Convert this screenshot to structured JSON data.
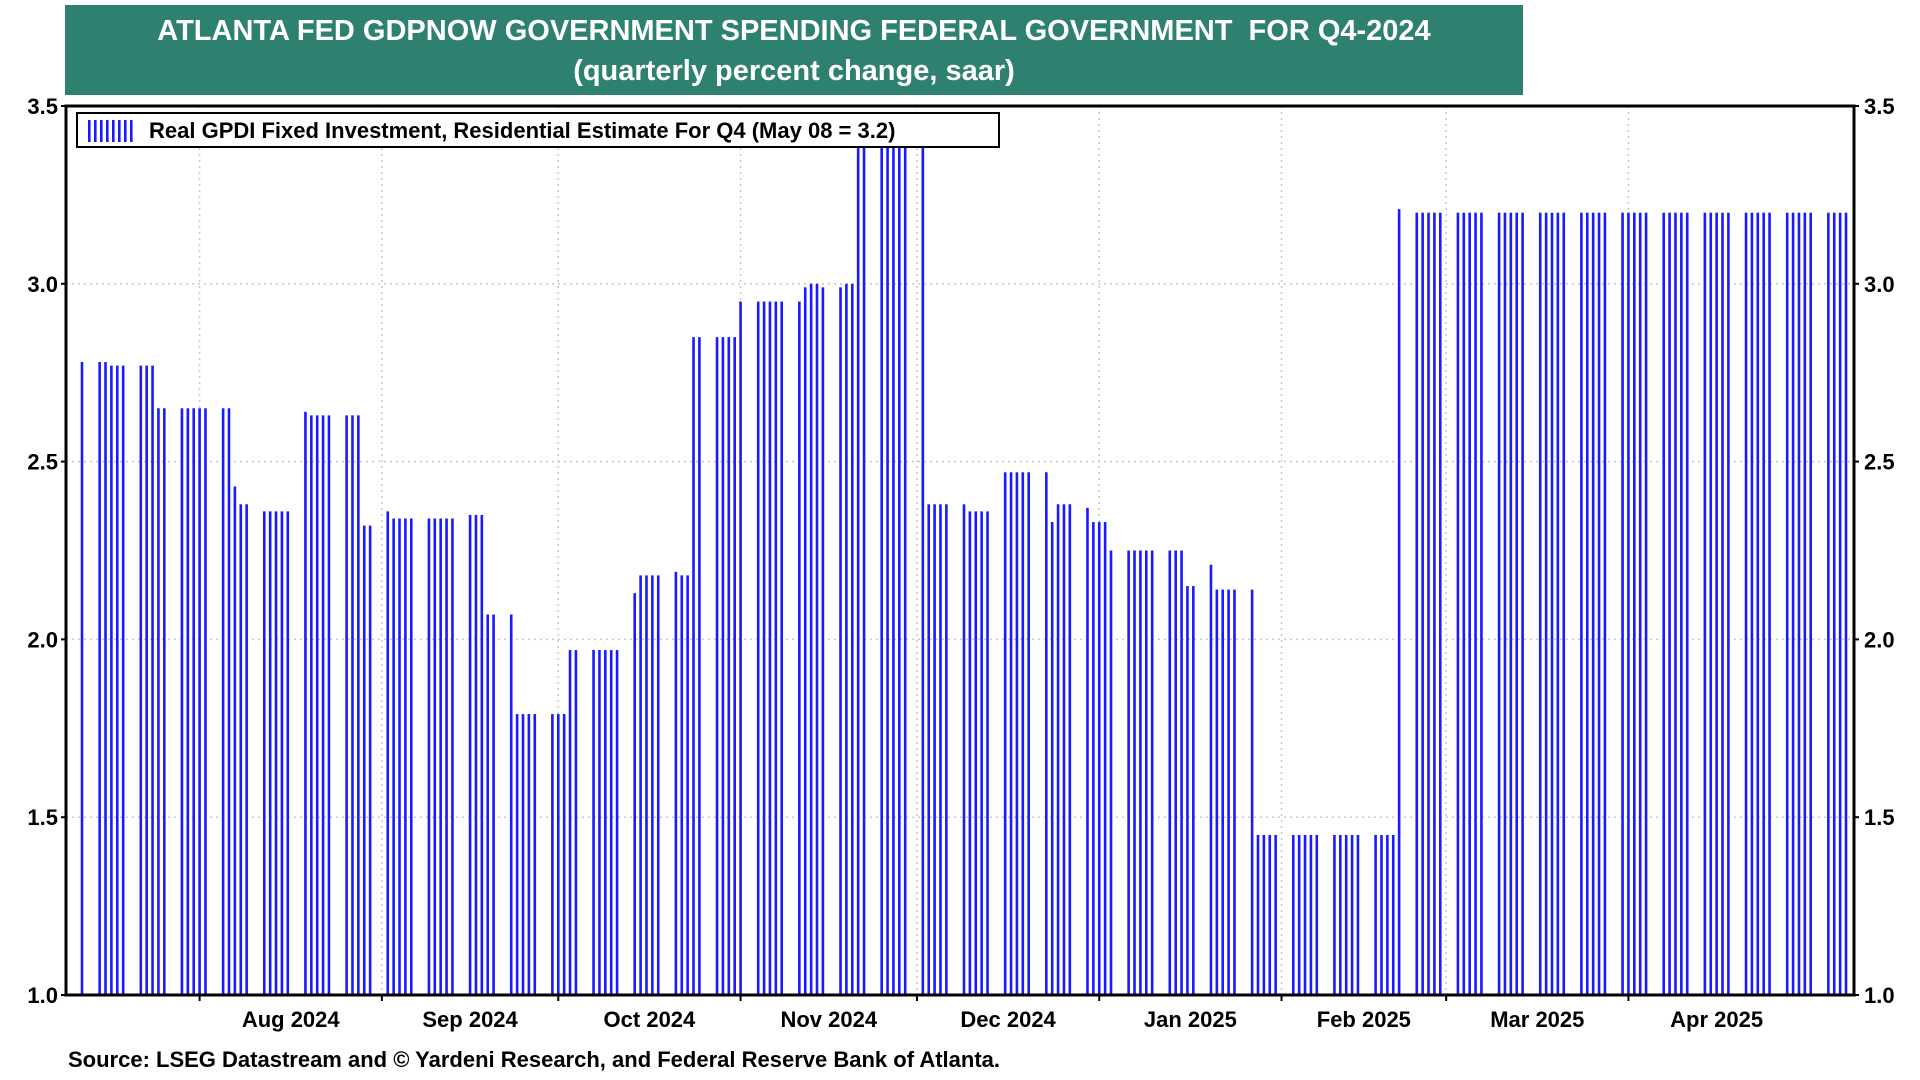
{
  "title": {
    "line1": "ATLANTA FED GDPNOW GOVERNMENT SPENDING FEDERAL GOVERNMENT  FOR Q4-2024",
    "line2": "(quarterly percent change, saar)"
  },
  "source": "Source: LSEG Datastream and © Yardeni Research, and Federal Reserve Bank of Atlanta.",
  "colors": {
    "title_bg": "#2e8070",
    "bar": "#1a1aff",
    "grid": "#c8c8c8"
  },
  "chart_data": {
    "type": "bar",
    "ylim": [
      1.0,
      3.5
    ],
    "yticks": [
      "1.0",
      "1.5",
      "2.0",
      "2.5",
      "3.0",
      "3.5"
    ],
    "grid": true,
    "legend_position": "top-left",
    "x_start": "2024-07-12",
    "x_end": "2025-05-08",
    "month_labels": [
      {
        "date": "2024-08-01",
        "label": "Aug 2024"
      },
      {
        "date": "2024-09-01",
        "label": "Sep 2024"
      },
      {
        "date": "2024-10-01",
        "label": "Oct 2024"
      },
      {
        "date": "2024-11-01",
        "label": "Nov 2024"
      },
      {
        "date": "2024-12-01",
        "label": "Dec 2024"
      },
      {
        "date": "2025-01-01",
        "label": "Jan 2025"
      },
      {
        "date": "2025-02-01",
        "label": "Feb 2025"
      },
      {
        "date": "2025-03-01",
        "label": "Mar 2025"
      },
      {
        "date": "2025-04-01",
        "label": "Apr 2025"
      }
    ],
    "series": [
      {
        "name": "Real GPDI Fixed Investment, Residential Estimate For Q4 (May 08 = 3.2)",
        "segments": [
          {
            "start": "2024-07-12",
            "end": "2024-07-16",
            "value": 2.78
          },
          {
            "start": "2024-07-17",
            "end": "2024-07-24",
            "value": 2.77
          },
          {
            "start": "2024-07-25",
            "end": "2024-08-06",
            "value": 2.65
          },
          {
            "start": "2024-08-07",
            "end": "2024-08-07",
            "value": 2.43
          },
          {
            "start": "2024-08-08",
            "end": "2024-08-11",
            "value": 2.38
          },
          {
            "start": "2024-08-12",
            "end": "2024-08-16",
            "value": 2.36
          },
          {
            "start": "2024-08-17",
            "end": "2024-08-19",
            "value": 2.64
          },
          {
            "start": "2024-08-20",
            "end": "2024-08-28",
            "value": 2.63
          },
          {
            "start": "2024-08-29",
            "end": "2024-08-30",
            "value": 2.32
          },
          {
            "start": "2024-08-31",
            "end": "2024-09-02",
            "value": 2.36
          },
          {
            "start": "2024-09-03",
            "end": "2024-09-13",
            "value": 2.34
          },
          {
            "start": "2024-09-14",
            "end": "2024-09-18",
            "value": 2.35
          },
          {
            "start": "2024-09-19",
            "end": "2024-09-23",
            "value": 2.07
          },
          {
            "start": "2024-09-24",
            "end": "2024-10-02",
            "value": 1.79
          },
          {
            "start": "2024-10-03",
            "end": "2024-10-11",
            "value": 1.97
          },
          {
            "start": "2024-10-12",
            "end": "2024-10-14",
            "value": 2.13
          },
          {
            "start": "2024-10-15",
            "end": "2024-10-19",
            "value": 2.18
          },
          {
            "start": "2024-10-20",
            "end": "2024-10-21",
            "value": 2.19
          },
          {
            "start": "2024-10-22",
            "end": "2024-10-23",
            "value": 2.18
          },
          {
            "start": "2024-10-24",
            "end": "2024-10-31",
            "value": 2.85
          },
          {
            "start": "2024-11-01",
            "end": "2024-11-11",
            "value": 2.95
          },
          {
            "start": "2024-11-12",
            "end": "2024-11-12",
            "value": 2.99
          },
          {
            "start": "2024-11-13",
            "end": "2024-11-14",
            "value": 3.0
          },
          {
            "start": "2024-11-15",
            "end": "2024-11-18",
            "value": 2.99
          },
          {
            "start": "2024-11-19",
            "end": "2024-11-20",
            "value": 3.0
          },
          {
            "start": "2024-11-21",
            "end": "2024-11-21",
            "value": 3.39
          },
          {
            "start": "2024-11-22",
            "end": "2024-12-02",
            "value": 3.4
          },
          {
            "start": "2024-12-03",
            "end": "2024-12-09",
            "value": 2.38
          },
          {
            "start": "2024-12-10",
            "end": "2024-12-13",
            "value": 2.36
          },
          {
            "start": "2024-12-14",
            "end": "2024-12-23",
            "value": 2.47
          },
          {
            "start": "2024-12-24",
            "end": "2024-12-24",
            "value": 2.33
          },
          {
            "start": "2024-12-25",
            "end": "2024-12-27",
            "value": 2.38
          },
          {
            "start": "2024-12-28",
            "end": "2024-12-30",
            "value": 2.37
          },
          {
            "start": "2024-12-31",
            "end": "2025-01-02",
            "value": 2.33
          },
          {
            "start": "2025-01-03",
            "end": "2025-01-15",
            "value": 2.25
          },
          {
            "start": "2025-01-16",
            "end": "2025-01-17",
            "value": 2.15
          },
          {
            "start": "2025-01-18",
            "end": "2025-01-18",
            "value": 2.25
          },
          {
            "start": "2025-01-19",
            "end": "2025-01-20",
            "value": 2.21
          },
          {
            "start": "2025-01-21",
            "end": "2025-01-27",
            "value": 2.14
          },
          {
            "start": "2025-01-28",
            "end": "2025-02-20",
            "value": 1.45
          },
          {
            "start": "2025-02-21",
            "end": "2025-02-21",
            "value": 3.21
          },
          {
            "start": "2025-02-22",
            "end": "2025-02-22",
            "value": 3.23
          },
          {
            "start": "2025-02-23",
            "end": "2025-05-08",
            "value": 3.2
          }
        ]
      }
    ]
  }
}
